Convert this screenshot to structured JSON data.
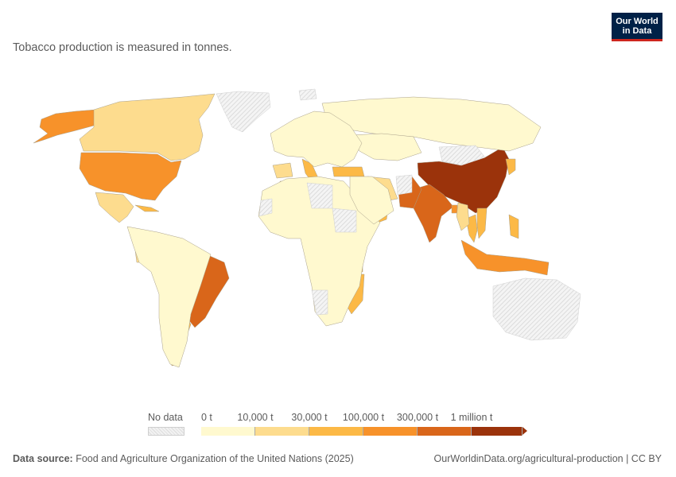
{
  "subtitle": "Tobacco production is measured in tonnes.",
  "logo": {
    "line1": "Our World",
    "line2": "in Data"
  },
  "legend": {
    "no_data_label": "No data",
    "no_data_pattern": "hatched-gray",
    "bins": [
      {
        "label": "0 t",
        "color": "#fff9cf"
      },
      {
        "label": "10,000 t",
        "color": "#fddc8e"
      },
      {
        "label": "30,000 t",
        "color": "#fcb946"
      },
      {
        "label": "100,000 t",
        "color": "#f7922a"
      },
      {
        "label": "300,000 t",
        "color": "#d9661a"
      },
      {
        "label": "1 million t",
        "color": "#9b330b"
      }
    ]
  },
  "footer": {
    "source_label": "Data source:",
    "source_text": "Food and Agriculture Organization of the United Nations (2025)",
    "link": "OurWorldinData.org/agricultural-production | CC BY"
  },
  "map_data": {
    "type": "choropleth",
    "metric": "Tobacco production (tonnes)",
    "regions": [
      {
        "name": "China",
        "bin": 5
      },
      {
        "name": "India",
        "bin": 4
      },
      {
        "name": "Brazil",
        "bin": 4
      },
      {
        "name": "Pakistan",
        "bin": 4
      },
      {
        "name": "Zimbabwe",
        "bin": 4
      },
      {
        "name": "United States",
        "bin": 3
      },
      {
        "name": "Indonesia",
        "bin": 3
      },
      {
        "name": "Bangladesh",
        "bin": 3
      },
      {
        "name": "Alaska",
        "bin": 3
      },
      {
        "name": "Mozambique",
        "bin": 2
      },
      {
        "name": "Malawi",
        "bin": 3
      },
      {
        "name": "Tanzania",
        "bin": 2
      },
      {
        "name": "Zambia",
        "bin": 2
      },
      {
        "name": "Argentina",
        "bin": 2
      },
      {
        "name": "Turkey",
        "bin": 2
      },
      {
        "name": "Italy",
        "bin": 2
      },
      {
        "name": "Philippines",
        "bin": 2
      },
      {
        "name": "Thailand",
        "bin": 2
      },
      {
        "name": "Vietnam",
        "bin": 2
      },
      {
        "name": "Myanmar",
        "bin": 1
      },
      {
        "name": "Oman",
        "bin": 2
      },
      {
        "name": "North Korea",
        "bin": 2
      },
      {
        "name": "Cuba",
        "bin": 2
      },
      {
        "name": "Canada",
        "bin": 1
      },
      {
        "name": "Mexico",
        "bin": 1
      },
      {
        "name": "Iran",
        "bin": 1
      },
      {
        "name": "Algeria",
        "bin": 1
      },
      {
        "name": "Spain",
        "bin": 1
      },
      {
        "name": "Ecuador",
        "bin": 1
      },
      {
        "name": "Uganda",
        "bin": 1
      },
      {
        "name": "Russia",
        "bin": 0
      },
      {
        "name": "Kazakhstan",
        "bin": 0
      },
      {
        "name": "Africa (other)",
        "bin": 0
      },
      {
        "name": "South America (other)",
        "bin": 0
      },
      {
        "name": "Europe (other)",
        "bin": 0
      },
      {
        "name": "Middle East (other)",
        "bin": 0
      },
      {
        "name": "Greenland",
        "bin": -1
      },
      {
        "name": "Australia",
        "bin": -1
      },
      {
        "name": "Mongolia",
        "bin": -1
      },
      {
        "name": "Libya",
        "bin": -1
      },
      {
        "name": "Sudan",
        "bin": -1
      },
      {
        "name": "Western Sahara",
        "bin": -1
      },
      {
        "name": "Namibia",
        "bin": -1
      },
      {
        "name": "Afghanistan",
        "bin": -1
      },
      {
        "name": "Svalbard",
        "bin": -1
      }
    ]
  }
}
